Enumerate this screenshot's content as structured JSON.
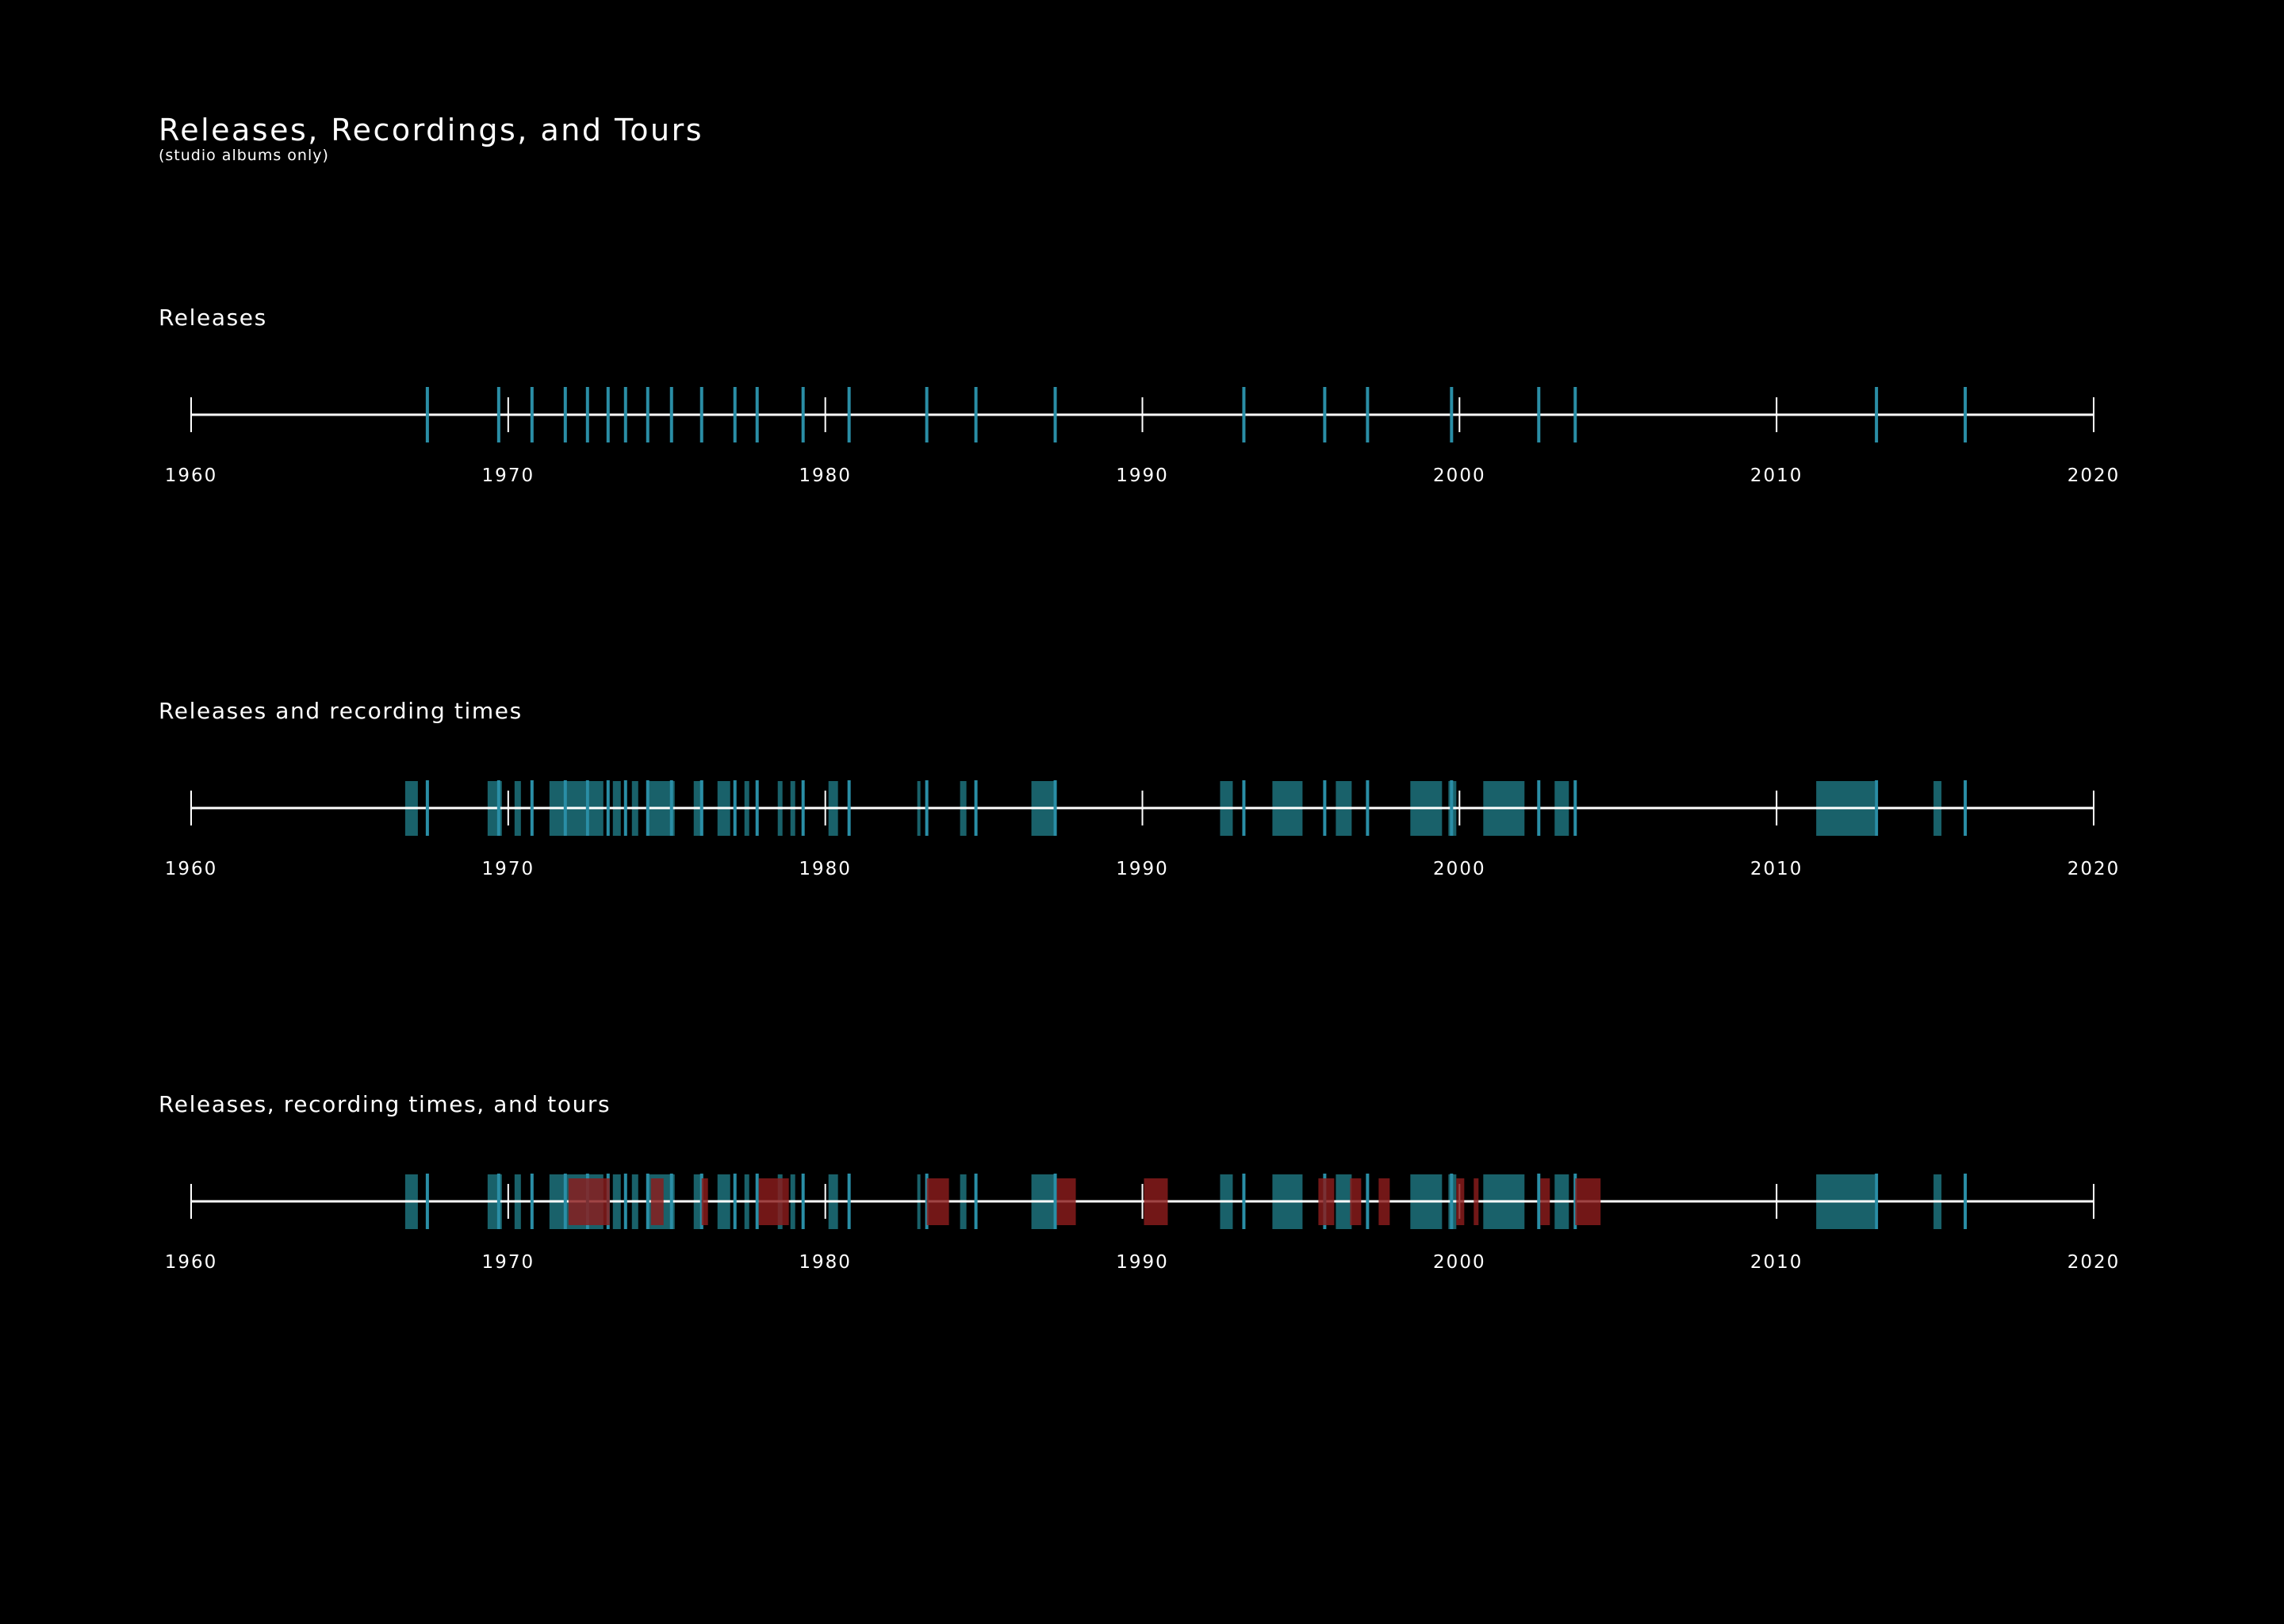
{
  "chart_data": {
    "type": "timeline",
    "title": "Releases, Recordings, and Tours",
    "subtitle": "(studio albums only)",
    "xlim": [
      1960,
      2020
    ],
    "ticks": [
      1960,
      1970,
      1980,
      1990,
      2000,
      2010,
      2020
    ],
    "tick_labels": [
      "1960",
      "1970",
      "1980",
      "1990",
      "2000",
      "2010",
      "2020"
    ],
    "colors": {
      "background": "#000000",
      "axis": "#ffffff",
      "release": "#2a8ea6",
      "recording": "#1a6670",
      "tour": "#8b1c1c"
    },
    "releases": [
      1967.45,
      1969.7,
      1970.75,
      1971.8,
      1972.5,
      1973.15,
      1973.7,
      1974.4,
      1975.15,
      1976.1,
      1977.15,
      1977.85,
      1979.3,
      1980.75,
      1983.2,
      1984.75,
      1987.25,
      1993.2,
      1995.75,
      1997.1,
      1999.75,
      2002.5,
      2003.65,
      2013.15,
      2015.95
    ],
    "recordings": [
      [
        1966.75,
        1967.15
      ],
      [
        1969.35,
        1969.8
      ],
      [
        1970.2,
        1970.4
      ],
      [
        1971.3,
        1971.8
      ],
      [
        1971.8,
        1972.45
      ],
      [
        1972.45,
        1973.0
      ],
      [
        1973.3,
        1973.55
      ],
      [
        1973.9,
        1974.1
      ],
      [
        1974.4,
        1975.25
      ],
      [
        1975.85,
        1976.15
      ],
      [
        1976.6,
        1977.0
      ],
      [
        1977.45,
        1977.6
      ],
      [
        1978.5,
        1978.65
      ],
      [
        1978.9,
        1979.05
      ],
      [
        1980.1,
        1980.4
      ],
      [
        1982.9,
        1983.0
      ],
      [
        1984.25,
        1984.45
      ],
      [
        1986.5,
        1987.3
      ],
      [
        1992.45,
        1992.85
      ],
      [
        1994.1,
        1995.05
      ],
      [
        1996.1,
        1996.6
      ],
      [
        1998.45,
        1999.45
      ],
      [
        1999.65,
        1999.9
      ],
      [
        2000.75,
        2002.05
      ],
      [
        2003.0,
        2003.45
      ],
      [
        2011.25,
        2013.1
      ],
      [
        2014.95,
        2015.2
      ]
    ],
    "tours": [
      [
        1971.9,
        1973.2
      ],
      [
        1974.5,
        1974.9
      ],
      [
        1976.1,
        1976.3
      ],
      [
        1977.9,
        1978.85
      ],
      [
        1983.2,
        1983.9
      ],
      [
        1987.3,
        1987.9
      ],
      [
        1990.05,
        1990.8
      ],
      [
        1995.55,
        1996.05
      ],
      [
        1996.55,
        1996.9
      ],
      [
        1997.45,
        1997.8
      ],
      [
        1999.9,
        2000.15
      ],
      [
        2000.45,
        2000.6
      ],
      [
        2002.55,
        2002.85
      ],
      [
        2003.65,
        2004.45
      ]
    ],
    "panels": [
      {
        "title": "Releases",
        "layers": [
          "releases"
        ]
      },
      {
        "title": "Releases and recording times",
        "layers": [
          "recordings",
          "releases"
        ]
      },
      {
        "title": "Releases, recording times, and tours",
        "layers": [
          "recordings",
          "releases",
          "tours"
        ]
      }
    ]
  }
}
